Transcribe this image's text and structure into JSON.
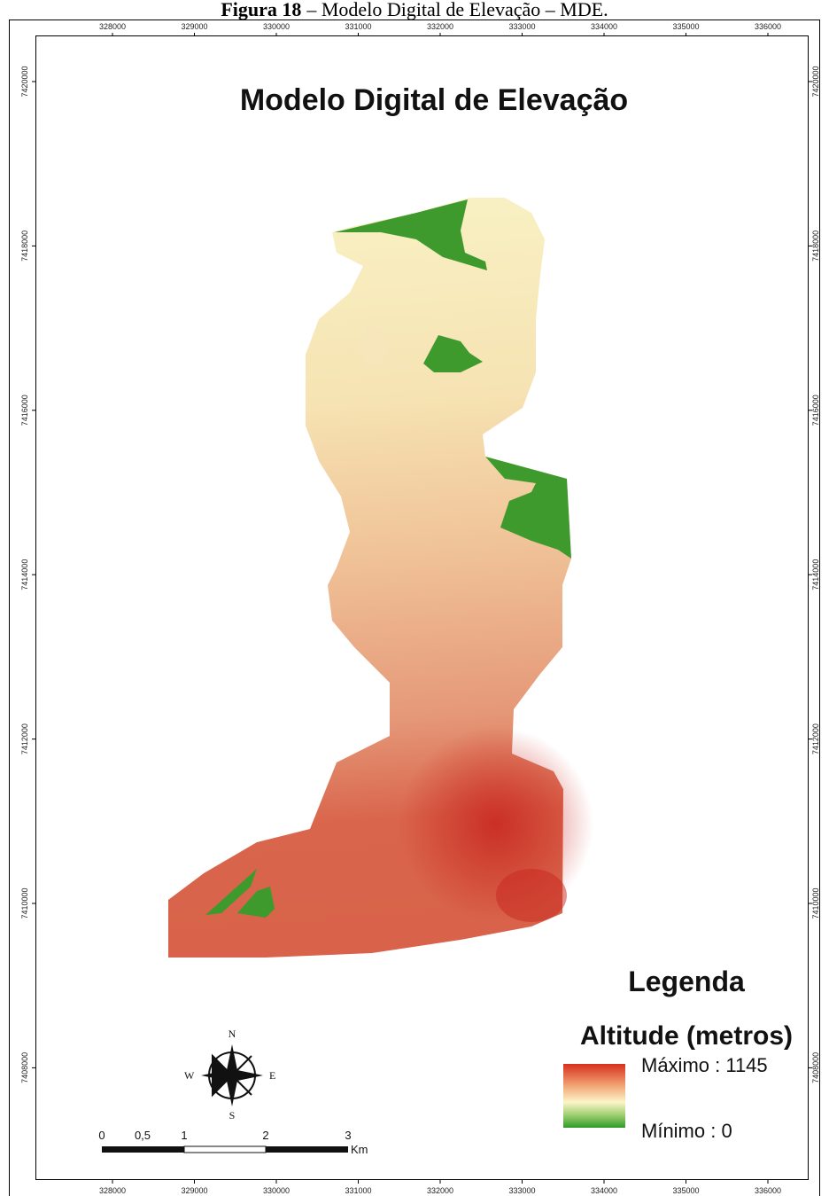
{
  "caption": {
    "label": "Figura 18",
    "text": "– Modelo Digital de Elevação – MDE."
  },
  "map": {
    "title": "Modelo Digital de Elevação",
    "x_ticks": [
      328000,
      329000,
      330000,
      331000,
      332000,
      333000,
      334000,
      335000,
      336000
    ],
    "y_ticks": [
      7420000,
      7418000,
      7416000,
      7414000,
      7412000,
      7410000,
      7408000
    ]
  },
  "legend": {
    "title": "Legenda",
    "subtitle": "Altitude (metros)",
    "max_label": "Máximo : 1145",
    "min_label": "Mínimo : 0"
  },
  "compass": {
    "n": "N",
    "s": "S",
    "e": "E",
    "w": "W"
  },
  "scale_bar": {
    "labels": [
      "0",
      "0,5",
      "1",
      "2",
      "3"
    ],
    "unit": "Km"
  }
}
